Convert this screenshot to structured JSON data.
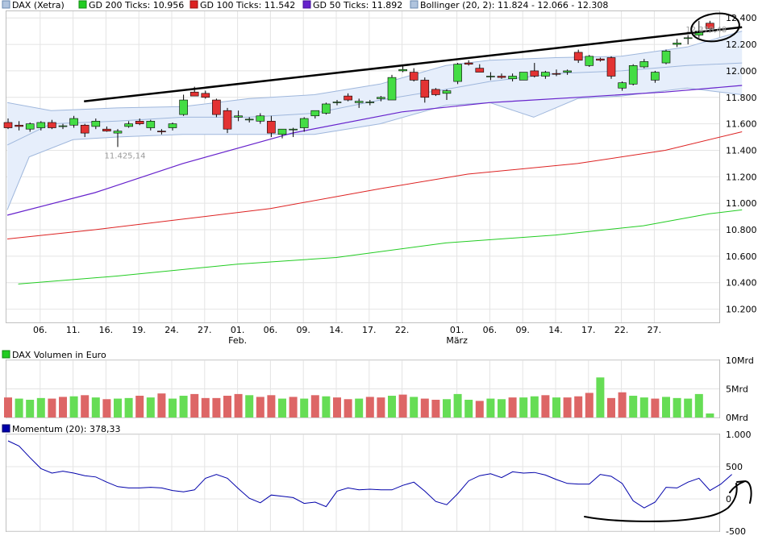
{
  "chart_data": [
    {
      "type": "candlestick",
      "legend": [
        {
          "label": "DAX (Xetra)",
          "color": "#b0c4de"
        },
        {
          "label": "GD 200 Ticks: 10.956",
          "color": "#22cc22"
        },
        {
          "label": "GD 100 Ticks: 11.542",
          "color": "#dd2222"
        },
        {
          "label": "GD 50 Ticks: 11.892",
          "color": "#6622cc"
        },
        {
          "label": "Bollinger (20, 2): 11.824 - 12.066 - 12.308",
          "color": "#b0c4de"
        }
      ],
      "ylim": [
        10100,
        12450
      ],
      "yticks": [
        {
          "v": 10200,
          "label": "10.200"
        },
        {
          "v": 10400,
          "label": "10.400"
        },
        {
          "v": 10600,
          "label": "10.600"
        },
        {
          "v": 10800,
          "label": "10.800"
        },
        {
          "v": 11000,
          "label": "11.000"
        },
        {
          "v": 11200,
          "label": "11.200"
        },
        {
          "v": 11400,
          "label": "11.400"
        },
        {
          "v": 11600,
          "label": "11.600"
        },
        {
          "v": 11800,
          "label": "11.800"
        },
        {
          "v": 12000,
          "label": "12.000"
        },
        {
          "v": 12200,
          "label": "12.200"
        },
        {
          "v": 12400,
          "label": "12.400"
        }
      ],
      "xticks": [
        {
          "i": 3,
          "label": "06."
        },
        {
          "i": 6,
          "label": "11."
        },
        {
          "i": 9,
          "label": "16."
        },
        {
          "i": 12,
          "label": "19."
        },
        {
          "i": 15,
          "label": "24."
        },
        {
          "i": 18,
          "label": "27."
        },
        {
          "i": 21,
          "label": "01."
        },
        {
          "i": 24,
          "label": "06."
        },
        {
          "i": 27,
          "label": "09."
        },
        {
          "i": 30,
          "label": "14."
        },
        {
          "i": 33,
          "label": "17."
        },
        {
          "i": 36,
          "label": "22."
        },
        {
          "i": 41,
          "label": "01."
        },
        {
          "i": 44,
          "label": "06."
        },
        {
          "i": 47,
          "label": "09."
        },
        {
          "i": 50,
          "label": "14."
        },
        {
          "i": 53,
          "label": "17."
        },
        {
          "i": 56,
          "label": "22."
        },
        {
          "i": 59,
          "label": "27."
        }
      ],
      "month_labels": [
        {
          "i": 21,
          "label": "Feb."
        },
        {
          "i": 41,
          "label": "März"
        }
      ],
      "annotations": [
        {
          "i": 10,
          "v": 11425,
          "label": "11.425,14"
        },
        {
          "i": 63,
          "v": 12378,
          "label": "12.378,48"
        }
      ],
      "candles": [
        {
          "o": 11610,
          "h": 11640,
          "l": 11560,
          "c": 11570
        },
        {
          "o": 11590,
          "h": 11620,
          "l": 11550,
          "c": 11580
        },
        {
          "o": 11560,
          "h": 11610,
          "l": 11540,
          "c": 11600
        },
        {
          "o": 11570,
          "h": 11620,
          "l": 11550,
          "c": 11610
        },
        {
          "o": 11610,
          "h": 11630,
          "l": 11560,
          "c": 11570
        },
        {
          "o": 11580,
          "h": 11600,
          "l": 11560,
          "c": 11585
        },
        {
          "o": 11590,
          "h": 11660,
          "l": 11570,
          "c": 11640
        },
        {
          "o": 11590,
          "h": 11600,
          "l": 11500,
          "c": 11530
        },
        {
          "o": 11580,
          "h": 11640,
          "l": 11560,
          "c": 11620
        },
        {
          "o": 11560,
          "h": 11580,
          "l": 11540,
          "c": 11545
        },
        {
          "o": 11530,
          "h": 11560,
          "l": 11425,
          "c": 11545
        },
        {
          "o": 11580,
          "h": 11620,
          "l": 11570,
          "c": 11600
        },
        {
          "o": 11620,
          "h": 11640,
          "l": 11590,
          "c": 11600
        },
        {
          "o": 11570,
          "h": 11630,
          "l": 11550,
          "c": 11620
        },
        {
          "o": 11545,
          "h": 11560,
          "l": 11520,
          "c": 11540
        },
        {
          "o": 11570,
          "h": 11610,
          "l": 11550,
          "c": 11600
        },
        {
          "o": 11670,
          "h": 11820,
          "l": 11660,
          "c": 11780
        },
        {
          "o": 11840,
          "h": 11880,
          "l": 11810,
          "c": 11810
        },
        {
          "o": 11830,
          "h": 11850,
          "l": 11790,
          "c": 11800
        },
        {
          "o": 11780,
          "h": 11790,
          "l": 11650,
          "c": 11670
        },
        {
          "o": 11700,
          "h": 11720,
          "l": 11530,
          "c": 11560
        },
        {
          "o": 11650,
          "h": 11700,
          "l": 11620,
          "c": 11660
        },
        {
          "o": 11630,
          "h": 11650,
          "l": 11610,
          "c": 11635
        },
        {
          "o": 11620,
          "h": 11680,
          "l": 11600,
          "c": 11660
        },
        {
          "o": 11620,
          "h": 11660,
          "l": 11500,
          "c": 11530
        },
        {
          "o": 11520,
          "h": 11560,
          "l": 11490,
          "c": 11560
        },
        {
          "o": 11555,
          "h": 11570,
          "l": 11500,
          "c": 11560
        },
        {
          "o": 11570,
          "h": 11650,
          "l": 11540,
          "c": 11640
        },
        {
          "o": 11660,
          "h": 11700,
          "l": 11640,
          "c": 11700
        },
        {
          "o": 11680,
          "h": 11760,
          "l": 11670,
          "c": 11750
        },
        {
          "o": 11760,
          "h": 11780,
          "l": 11740,
          "c": 11765
        },
        {
          "o": 11810,
          "h": 11830,
          "l": 11770,
          "c": 11780
        },
        {
          "o": 11760,
          "h": 11790,
          "l": 11720,
          "c": 11770
        },
        {
          "o": 11760,
          "h": 11780,
          "l": 11740,
          "c": 11765
        },
        {
          "o": 11790,
          "h": 11810,
          "l": 11770,
          "c": 11800
        },
        {
          "o": 11780,
          "h": 11970,
          "l": 11780,
          "c": 11950
        },
        {
          "o": 12000,
          "h": 12040,
          "l": 11990,
          "c": 12010
        },
        {
          "o": 11990,
          "h": 12020,
          "l": 11920,
          "c": 11930
        },
        {
          "o": 11930,
          "h": 11950,
          "l": 11760,
          "c": 11800
        },
        {
          "o": 11860,
          "h": 11870,
          "l": 11810,
          "c": 11820
        },
        {
          "o": 11830,
          "h": 11860,
          "l": 11780,
          "c": 11850
        },
        {
          "o": 11920,
          "h": 12060,
          "l": 11900,
          "c": 12050
        },
        {
          "o": 12060,
          "h": 12080,
          "l": 12040,
          "c": 12050
        },
        {
          "o": 12020,
          "h": 12050,
          "l": 11990,
          "c": 11990
        },
        {
          "o": 11960,
          "h": 11990,
          "l": 11930,
          "c": 11960
        },
        {
          "o": 11960,
          "h": 11980,
          "l": 11940,
          "c": 11950
        },
        {
          "o": 11940,
          "h": 11980,
          "l": 11920,
          "c": 11960
        },
        {
          "o": 11930,
          "h": 11990,
          "l": 11930,
          "c": 11990
        },
        {
          "o": 12000,
          "h": 12060,
          "l": 11950,
          "c": 11960
        },
        {
          "o": 11960,
          "h": 12000,
          "l": 11940,
          "c": 11990
        },
        {
          "o": 11980,
          "h": 12010,
          "l": 11960,
          "c": 11975
        },
        {
          "o": 11990,
          "h": 12010,
          "l": 11970,
          "c": 12000
        },
        {
          "o": 12140,
          "h": 12160,
          "l": 12060,
          "c": 12080
        },
        {
          "o": 12040,
          "h": 12120,
          "l": 12030,
          "c": 12110
        },
        {
          "o": 12090,
          "h": 12100,
          "l": 12070,
          "c": 12080
        },
        {
          "o": 12100,
          "h": 12110,
          "l": 11940,
          "c": 11960
        },
        {
          "o": 11870,
          "h": 11920,
          "l": 11850,
          "c": 11910
        },
        {
          "o": 11900,
          "h": 12050,
          "l": 11890,
          "c": 12040
        },
        {
          "o": 12030,
          "h": 12090,
          "l": 12020,
          "c": 12070
        },
        {
          "o": 11930,
          "h": 12000,
          "l": 11910,
          "c": 11990
        },
        {
          "o": 12060,
          "h": 12160,
          "l": 12050,
          "c": 12150
        },
        {
          "o": 12200,
          "h": 12240,
          "l": 12180,
          "c": 12210
        },
        {
          "o": 12250,
          "h": 12270,
          "l": 12200,
          "c": 12250
        },
        {
          "o": 12270,
          "h": 12378,
          "l": 12250,
          "c": 12300
        },
        {
          "o": 12360,
          "h": 12378,
          "l": 12290,
          "c": 12320
        }
      ],
      "gd200": [
        [
          1,
          10390
        ],
        [
          10,
          10450
        ],
        [
          21,
          10540
        ],
        [
          30,
          10590
        ],
        [
          40,
          10700
        ],
        [
          50,
          10760
        ],
        [
          58,
          10830
        ],
        [
          64,
          10920
        ],
        [
          67,
          10950
        ]
      ],
      "gd100": [
        [
          0,
          10730
        ],
        [
          8,
          10800
        ],
        [
          16,
          10880
        ],
        [
          24,
          10960
        ],
        [
          34,
          11110
        ],
        [
          42,
          11220
        ],
        [
          52,
          11300
        ],
        [
          60,
          11400
        ],
        [
          67,
          11540
        ]
      ],
      "gd50": [
        [
          0,
          10910
        ],
        [
          8,
          11080
        ],
        [
          16,
          11300
        ],
        [
          26,
          11530
        ],
        [
          36,
          11690
        ],
        [
          44,
          11760
        ],
        [
          52,
          11800
        ],
        [
          60,
          11840
        ],
        [
          67,
          11890
        ]
      ],
      "trendline": [
        [
          7,
          11770
        ],
        [
          67,
          12330
        ]
      ],
      "boll_upper": [
        [
          0,
          11760
        ],
        [
          4,
          11700
        ],
        [
          10,
          11720
        ],
        [
          16,
          11730
        ],
        [
          22,
          11790
        ],
        [
          28,
          11820
        ],
        [
          34,
          11900
        ],
        [
          40,
          12040
        ],
        [
          44,
          12080
        ],
        [
          50,
          12100
        ],
        [
          56,
          12110
        ],
        [
          62,
          12180
        ],
        [
          67,
          12300
        ]
      ],
      "boll_mid": [
        [
          0,
          11440
        ],
        [
          4,
          11600
        ],
        [
          10,
          11620
        ],
        [
          16,
          11650
        ],
        [
          22,
          11650
        ],
        [
          28,
          11680
        ],
        [
          34,
          11780
        ],
        [
          40,
          11860
        ],
        [
          44,
          11920
        ],
        [
          50,
          11980
        ],
        [
          56,
          12000
        ],
        [
          62,
          12040
        ],
        [
          67,
          12060
        ]
      ],
      "boll_lower": [
        [
          0,
          10950
        ],
        [
          2,
          11350
        ],
        [
          6,
          11480
        ],
        [
          10,
          11500
        ],
        [
          16,
          11520
        ],
        [
          22,
          11520
        ],
        [
          28,
          11520
        ],
        [
          34,
          11600
        ],
        [
          40,
          11740
        ],
        [
          44,
          11760
        ],
        [
          48,
          11650
        ],
        [
          52,
          11790
        ],
        [
          56,
          11810
        ],
        [
          62,
          11870
        ],
        [
          67,
          11820
        ]
      ]
    },
    {
      "type": "bar",
      "legend_label": "DAX Volumen in Euro",
      "legend_color": "#22cc22",
      "ylim": [
        0,
        10
      ],
      "yticks": [
        {
          "v": 0,
          "label": "0Mrd"
        },
        {
          "v": 5,
          "label": "5Mrd"
        },
        {
          "v": 10,
          "label": "10Mrd"
        }
      ],
      "values": [
        3.5,
        3.3,
        3.1,
        3.4,
        3.3,
        3.6,
        3.7,
        3.9,
        3.5,
        3.2,
        3.3,
        3.4,
        3.8,
        3.5,
        4.2,
        3.3,
        3.8,
        4.1,
        3.4,
        3.4,
        3.8,
        4.1,
        3.9,
        3.6,
        3.9,
        3.3,
        3.6,
        3.3,
        3.9,
        3.7,
        3.5,
        3.2,
        3.3,
        3.6,
        3.5,
        3.8,
        4.0,
        3.6,
        3.3,
        3.1,
        3.2,
        4.1,
        3.1,
        2.9,
        3.3,
        3.2,
        3.5,
        3.5,
        3.7,
        3.9,
        3.5,
        3.5,
        3.7,
        4.3,
        7.0,
        3.4,
        4.4,
        3.8,
        3.5,
        3.3,
        3.6,
        3.4,
        3.3,
        4.1,
        0.7
      ],
      "colors": [
        "r",
        "g",
        "g",
        "g",
        "r",
        "r",
        "g",
        "r",
        "g",
        "r",
        "g",
        "g",
        "r",
        "g",
        "r",
        "g",
        "g",
        "r",
        "r",
        "r",
        "r",
        "r",
        "g",
        "r",
        "r",
        "g",
        "r",
        "g",
        "r",
        "g",
        "r",
        "r",
        "g",
        "r",
        "r",
        "g",
        "r",
        "g",
        "r",
        "r",
        "g",
        "g",
        "g",
        "r",
        "g",
        "g",
        "r",
        "g",
        "g",
        "r",
        "g",
        "r",
        "r",
        "r",
        "g",
        "r",
        "r",
        "g",
        "g",
        "r",
        "g",
        "g",
        "g",
        "g",
        "g"
      ]
    },
    {
      "type": "line",
      "legend_label": "Momentum (20): 378,33",
      "legend_color": "#0000aa",
      "ylim": [
        -500,
        1000
      ],
      "yticks": [
        {
          "v": -500,
          "label": "-500"
        },
        {
          "v": 0,
          "label": "0"
        },
        {
          "v": 500,
          "label": "500"
        },
        {
          "v": 1000,
          "label": "1.000"
        }
      ],
      "values": [
        900,
        820,
        640,
        470,
        400,
        430,
        400,
        360,
        340,
        260,
        190,
        170,
        170,
        180,
        170,
        130,
        110,
        140,
        320,
        380,
        320,
        160,
        10,
        -60,
        60,
        40,
        20,
        -70,
        -50,
        -120,
        120,
        170,
        140,
        150,
        140,
        140,
        210,
        260,
        120,
        -40,
        -90,
        80,
        280,
        360,
        390,
        330,
        420,
        400,
        410,
        370,
        300,
        240,
        230,
        230,
        380,
        350,
        240,
        -30,
        -140,
        -50,
        180,
        170,
        260,
        320,
        130,
        230,
        380
      ]
    }
  ]
}
